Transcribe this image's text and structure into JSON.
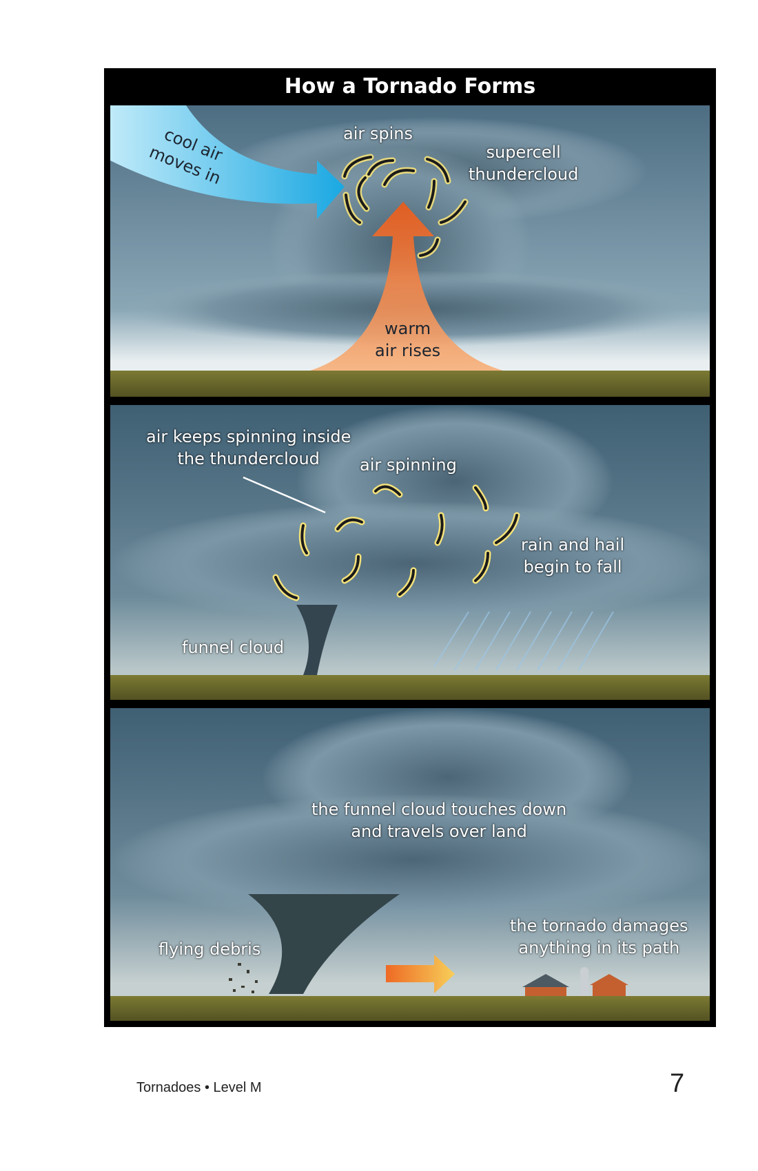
{
  "title": "How a Tornado Forms",
  "panel1": {
    "cool_air": [
      "cool air",
      "moves in"
    ],
    "air_spins": "air spins",
    "supercell": [
      "supercell",
      "thundercloud"
    ],
    "warm_air": [
      "warm",
      "air rises"
    ]
  },
  "panel2": {
    "air_keeps": [
      "air keeps spinning inside",
      "the thundercloud"
    ],
    "air_spinning": "air spinning",
    "rain_hail": [
      "rain and hail",
      "begin to fall"
    ],
    "funnel_cloud": "funnel cloud"
  },
  "panel3": {
    "touches_down": [
      "the funnel cloud touches down",
      "and travels over land"
    ],
    "damages": [
      "the tornado damages",
      "anything in its path"
    ],
    "debris": "flying debris"
  },
  "footer": {
    "book": "Tornadoes • Level M",
    "page": "7"
  },
  "colors": {
    "frame": "#000000",
    "sky": "#5e7f93",
    "ground": "#6b6a2c",
    "cool_air": "#29b6e8",
    "warm_air": "#f07a2a",
    "arrow_outline": "#f4e27a"
  }
}
